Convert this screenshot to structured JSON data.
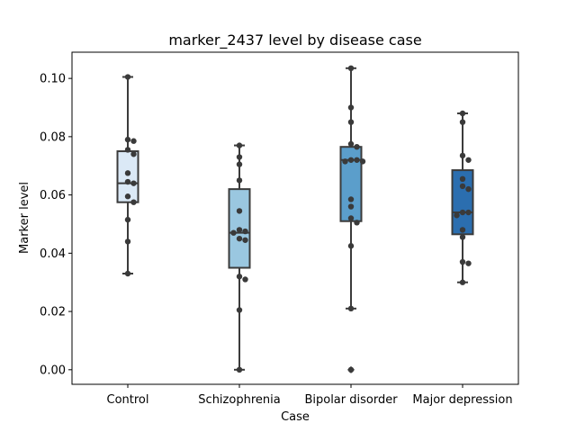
{
  "chart_data": {
    "type": "box",
    "title": "marker_2437 level by disease case",
    "xlabel": "Case",
    "ylabel": "Marker level",
    "ylim": [
      -0.005,
      0.109
    ],
    "yticks": [
      0.0,
      0.02,
      0.04,
      0.06,
      0.08,
      0.1
    ],
    "ytick_labels": [
      "0.00",
      "0.02",
      "0.04",
      "0.06",
      "0.08",
      "0.10"
    ],
    "categories": [
      "Control",
      "Schizophrenia",
      "Bipolar disorder",
      "Major depression"
    ],
    "colors": [
      "#dbe9f6",
      "#9ac7e0",
      "#5b9ecb",
      "#2b6eaf"
    ],
    "boxes": [
      {
        "category": "Control",
        "whisker_low": 0.033,
        "q1": 0.0575,
        "median": 0.064,
        "q3": 0.075,
        "whisker_high": 0.1005,
        "outliers": []
      },
      {
        "category": "Schizophrenia",
        "whisker_low": 0.0,
        "q1": 0.035,
        "median": 0.047,
        "q3": 0.062,
        "whisker_high": 0.077,
        "outliers": []
      },
      {
        "category": "Bipolar disorder",
        "whisker_low": 0.021,
        "q1": 0.051,
        "median": 0.072,
        "q3": 0.0765,
        "whisker_high": 0.1035,
        "outliers": [
          0.0
        ]
      },
      {
        "category": "Major depression",
        "whisker_low": 0.03,
        "q1": 0.0465,
        "median": 0.054,
        "q3": 0.0685,
        "whisker_high": 0.088,
        "outliers": []
      }
    ],
    "points": [
      [
        0.1005,
        0.079,
        0.0785,
        0.0755,
        0.074,
        0.0675,
        0.0645,
        0.064,
        0.0595,
        0.0575,
        0.0515,
        0.044,
        0.033
      ],
      [
        0.077,
        0.073,
        0.0705,
        0.065,
        0.0545,
        0.048,
        0.0475,
        0.047,
        0.045,
        0.0445,
        0.032,
        0.031,
        0.0205,
        0.0
      ],
      [
        0.1035,
        0.09,
        0.085,
        0.0775,
        0.0765,
        0.072,
        0.072,
        0.0715,
        0.0715,
        0.0585,
        0.056,
        0.052,
        0.0505,
        0.0425,
        0.021,
        0.0
      ],
      [
        0.088,
        0.085,
        0.0735,
        0.072,
        0.0655,
        0.063,
        0.062,
        0.054,
        0.054,
        0.053,
        0.048,
        0.0455,
        0.037,
        0.0365,
        0.03
      ]
    ]
  }
}
